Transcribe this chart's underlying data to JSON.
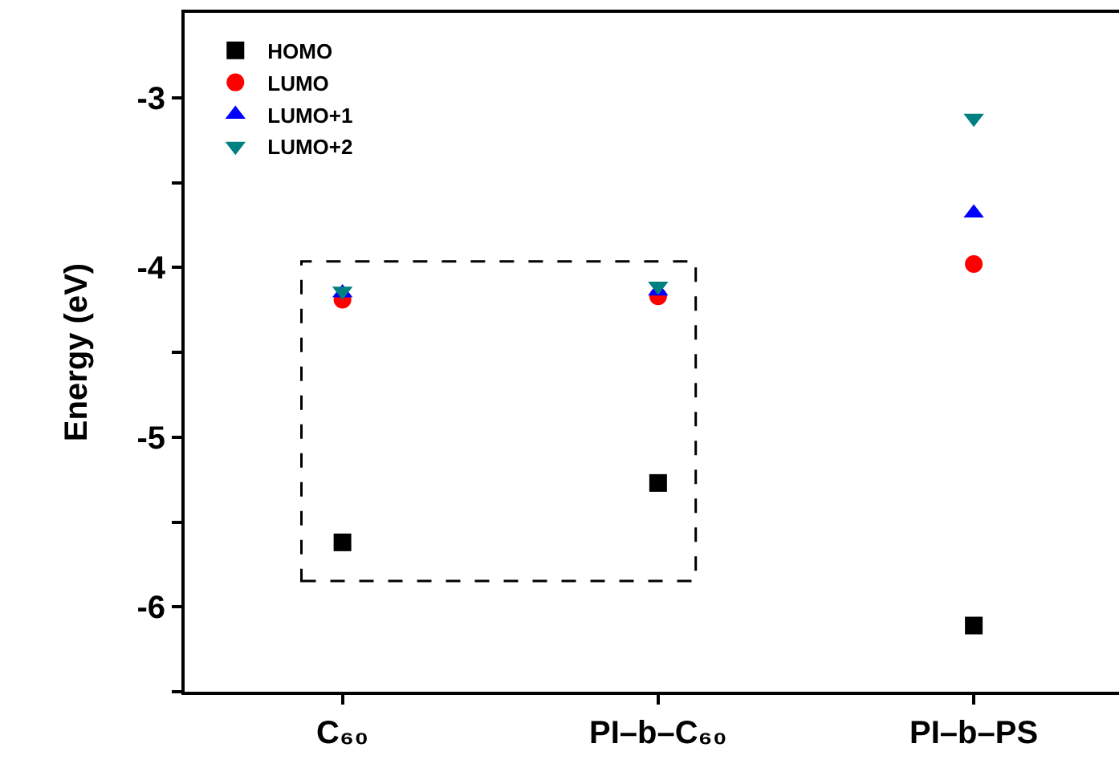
{
  "chart_data": {
    "type": "scatter",
    "ylabel": "Energy (eV)",
    "categories": [
      "C₆₀",
      "PI–b–C₆₀",
      "PI–b–PS"
    ],
    "series": [
      {
        "name": "HOMO",
        "color": "#000000",
        "marker": "square",
        "values": [
          -5.62,
          -5.27,
          -6.11
        ]
      },
      {
        "name": "LUMO",
        "color": "#ff0000",
        "marker": "circle",
        "values": [
          -4.19,
          -4.17,
          -3.98
        ]
      },
      {
        "name": "LUMO+1",
        "color": "#0000ff",
        "marker": "triangle",
        "values": [
          -4.15,
          -4.14,
          -3.68
        ]
      },
      {
        "name": "LUMO+2",
        "color": "#008080",
        "marker": "triangle-down",
        "values": [
          -4.14,
          -4.11,
          -3.12
        ]
      }
    ],
    "ylim": [
      -6.5,
      -2.5
    ],
    "yticks": [
      {
        "value": -6.5,
        "label": null
      },
      -6,
      {
        "value": -5.5,
        "label": null
      },
      -5,
      {
        "value": -4.5,
        "label": null
      },
      -4,
      {
        "value": -3.5,
        "label": null
      },
      -3
    ],
    "grid": false,
    "legend": "top left"
  }
}
